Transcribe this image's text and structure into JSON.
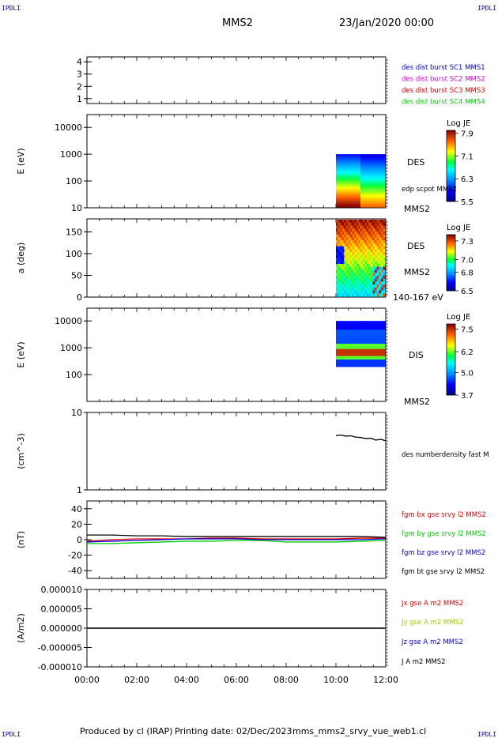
{
  "corner_label": "IPDLI",
  "header": {
    "title": "MMS2",
    "date": "23/Jan/2020 00:00"
  },
  "footer": {
    "produced": "Produced by cl (IRAP)",
    "printing": "Printing date: 02/Dec/2023",
    "file": "mms_mms2_srvy_vue_web1.cl"
  },
  "chart_data": [
    {
      "type": "line",
      "panel": "spacecraft-availability",
      "yticks": [
        "4",
        "3",
        "2",
        "1"
      ],
      "ylim": [
        0.6,
        4.4
      ],
      "legend": [
        {
          "text": "des dist burst SC1 MMS1",
          "color": "#0000dd"
        },
        {
          "text": "des dist burst SC2 MMS2",
          "color": "#dd00dd"
        },
        {
          "text": "des dist burst SC3 MMS3",
          "color": "#dd0000"
        },
        {
          "text": "des dist burst SC4 MMS4",
          "color": "#00cc00"
        }
      ]
    },
    {
      "type": "heatmap",
      "panel": "des-energy-spectrogram",
      "ylabel": "E (eV)",
      "yscale": "log",
      "ylim": [
        10,
        30000
      ],
      "yticks": [
        "10000",
        "1000",
        "100",
        "10"
      ],
      "data_x_range": [
        "10:00",
        "12:00"
      ],
      "data_y_range": [
        10,
        1000
      ],
      "colorbar": {
        "title": "Log JE",
        "ticks": [
          "7.9",
          "7.1",
          "6.3",
          "5.5"
        ],
        "range": [
          5.5,
          8.0
        ]
      },
      "side_labels": [
        "DES",
        "edp scpot MMS2",
        "MMS2"
      ]
    },
    {
      "type": "heatmap",
      "panel": "des-pitch-angle",
      "ylabel": "a (deg)",
      "ylim": [
        0,
        180
      ],
      "yticks": [
        "150",
        "100",
        "50",
        "0"
      ],
      "data_x_range": [
        "10:00",
        "12:00"
      ],
      "colorbar": {
        "title": "Log JE",
        "ticks": [
          "7.3",
          "7.0",
          "6.8",
          "6.5"
        ],
        "range": [
          6.5,
          7.4
        ]
      },
      "side_labels": [
        "DES",
        "MMS2",
        "140-167 eV"
      ]
    },
    {
      "type": "heatmap",
      "panel": "dis-energy-spectrogram",
      "ylabel": "E (eV)",
      "yscale": "log",
      "ylim": [
        10,
        30000
      ],
      "yticks": [
        "10000",
        "1000",
        "100"
      ],
      "data_x_range": [
        "10:00",
        "12:00"
      ],
      "data_y_range": [
        200,
        10000
      ],
      "colorbar": {
        "title": "Log JE",
        "ticks": [
          "7.5",
          "6.2",
          "5.0",
          "3.7"
        ],
        "range": [
          3.7,
          7.8
        ]
      },
      "side_labels": [
        "DIS",
        "MMS2"
      ]
    },
    {
      "type": "line",
      "panel": "density",
      "ylabel": "(cm^-3)",
      "yscale": "log",
      "ylim": [
        1,
        10
      ],
      "yticks": [
        "10",
        "1"
      ],
      "series": [
        {
          "name": "des numberdensity fast M",
          "color": "#000000",
          "x": [
            10.0,
            10.2,
            10.4,
            10.6,
            10.8,
            11.0,
            11.2,
            11.4,
            11.6,
            11.8,
            12.0
          ],
          "values": [
            5.0,
            5.1,
            4.95,
            5.0,
            4.8,
            4.75,
            4.6,
            4.65,
            4.4,
            4.5,
            4.3
          ]
        }
      ]
    },
    {
      "type": "line",
      "panel": "magnetic-field",
      "ylabel": "(nT)",
      "ylim": [
        -50,
        50
      ],
      "yticks": [
        "40",
        "20",
        "0",
        "-20",
        "-40"
      ],
      "series": [
        {
          "name": "fgm bx gse srvy l2 MMS2",
          "color": "#dd0000",
          "x": [
            0,
            1,
            2,
            3,
            4,
            5,
            6,
            7,
            8,
            9,
            10,
            11,
            12
          ],
          "values": [
            -2,
            0,
            1,
            1,
            1,
            2,
            2,
            1,
            1,
            1,
            1,
            2,
            2
          ]
        },
        {
          "name": "fgm by gse srvy l2 MMS2",
          "color": "#00cc00",
          "x": [
            0,
            1,
            2,
            3,
            4,
            5,
            6,
            7,
            8,
            9,
            10,
            11,
            12
          ],
          "values": [
            -5,
            -5,
            -4,
            -3,
            -2,
            -2,
            -1,
            -1,
            -3,
            -3,
            -3,
            -2,
            -1
          ]
        },
        {
          "name": "fgm bz gse srvy l2 MMS2",
          "color": "#0000dd",
          "x": [
            0,
            1,
            2,
            3,
            4,
            5,
            6,
            7,
            8,
            9,
            10,
            11,
            12
          ],
          "values": [
            -3,
            -2,
            -1,
            0,
            1,
            1,
            1,
            0,
            0,
            0,
            0,
            0,
            1
          ]
        },
        {
          "name": "fgm bt gse srvy l2 MMS2",
          "color": "#000000",
          "x": [
            0,
            1,
            2,
            3,
            4,
            5,
            6,
            7,
            8,
            9,
            10,
            11,
            12
          ],
          "values": [
            6,
            6,
            5,
            5,
            4,
            4,
            4,
            4,
            4,
            4,
            4,
            4,
            3
          ]
        }
      ]
    },
    {
      "type": "line",
      "panel": "current-density",
      "ylabel": "(A/m2)",
      "ylim": [
        -1e-05,
        1e-05
      ],
      "yticks": [
        "0.000010",
        "0.000005",
        "0.000000",
        "-0.000005",
        "-0.000010"
      ],
      "series": [
        {
          "name": "Jx gse A m2 MMS2",
          "color": "#dd0000",
          "x": [
            0,
            12
          ],
          "values": [
            0,
            0
          ]
        },
        {
          "name": "Jy gse A m2 MMS2",
          "color": "#99cc00",
          "x": [
            0,
            12
          ],
          "values": [
            0,
            0
          ]
        },
        {
          "name": "Jz gse A m2 MMS2",
          "color": "#0000dd",
          "x": [
            0,
            12
          ],
          "values": [
            0,
            0
          ]
        },
        {
          "name": "J A m2 MMS2",
          "color": "#000000",
          "x": [
            0,
            12
          ],
          "values": [
            0,
            0
          ]
        }
      ]
    }
  ],
  "x_axis": {
    "ticks": [
      "00:00",
      "02:00",
      "04:00",
      "06:00",
      "08:00",
      "10:00",
      "12:00"
    ]
  }
}
